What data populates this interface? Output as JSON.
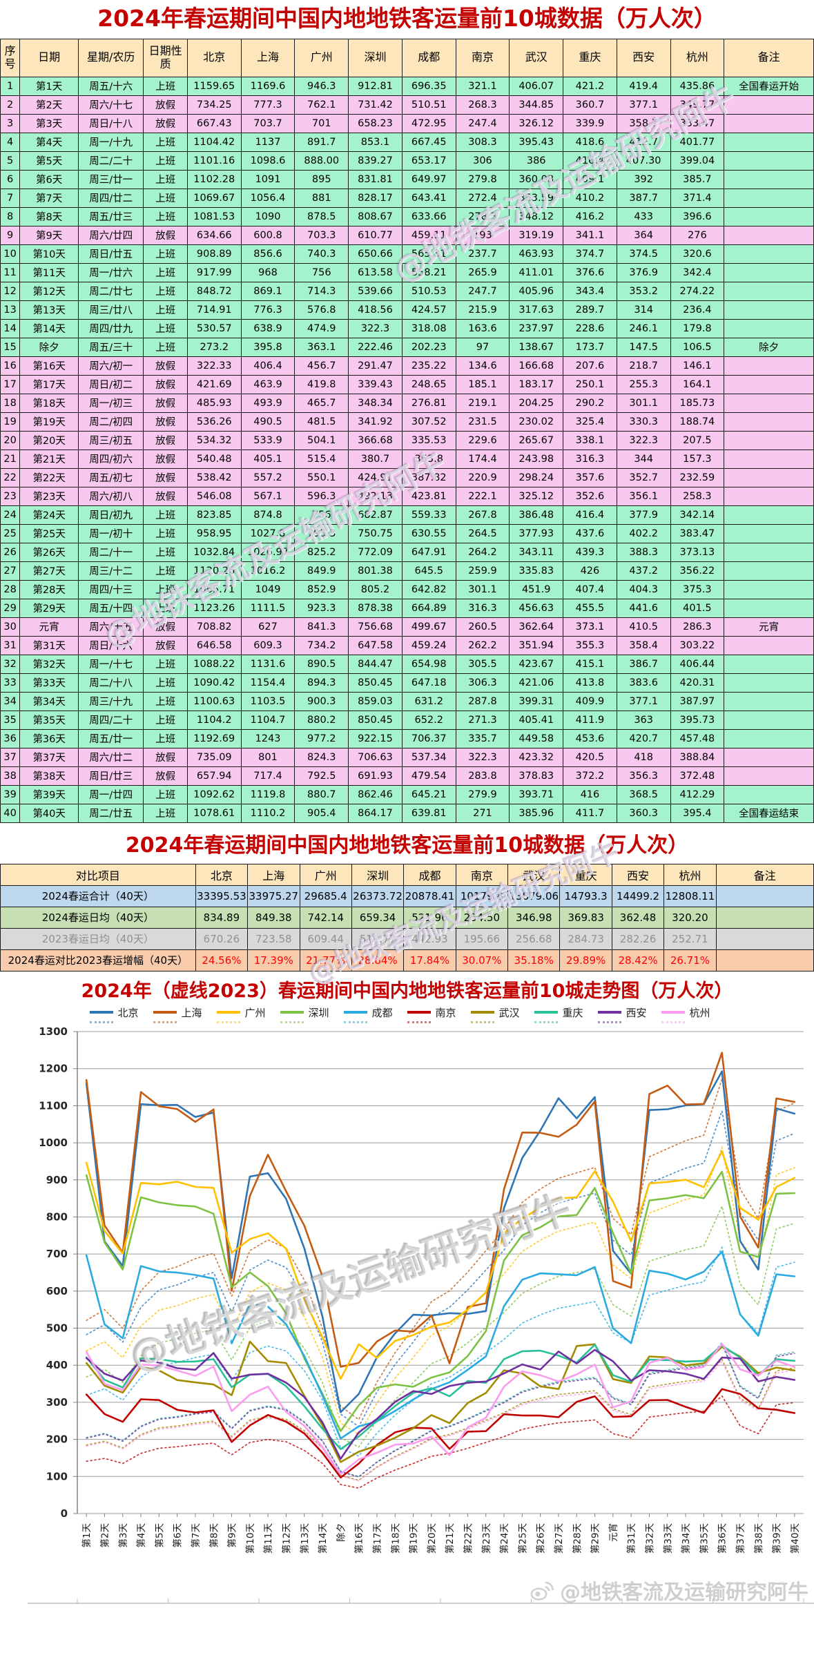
{
  "table1": {
    "title": "2024年春运期间中国内地地铁客运量前10城数据（万人次）",
    "headers": [
      "序号",
      "日期",
      "星期/农历",
      "日期性质",
      "北京",
      "上海",
      "广州",
      "深圳",
      "成都",
      "南京",
      "武汉",
      "重庆",
      "西安",
      "杭州",
      "备注"
    ],
    "rows": [
      [
        "1",
        "第1天",
        "周五/十六",
        "上班",
        "全国春运开始"
      ],
      [
        "2",
        "第2天",
        "周六/十七",
        "放假",
        ""
      ],
      [
        "3",
        "第3天",
        "周日/十八",
        "放假",
        ""
      ],
      [
        "4",
        "第4天",
        "周一/十九",
        "上班",
        ""
      ],
      [
        "5",
        "第5天",
        "周二/二十",
        "上班",
        ""
      ],
      [
        "6",
        "第6天",
        "周三/廿一",
        "上班",
        ""
      ],
      [
        "7",
        "第7天",
        "周四/廿二",
        "上班",
        ""
      ],
      [
        "8",
        "第8天",
        "周五/廿三",
        "上班",
        ""
      ],
      [
        "9",
        "第9天",
        "周六/廿四",
        "放假",
        ""
      ],
      [
        "10",
        "第10天",
        "周日/廿五",
        "上班",
        ""
      ],
      [
        "11",
        "第11天",
        "周一/廿六",
        "上班",
        ""
      ],
      [
        "12",
        "第12天",
        "周二/廿七",
        "上班",
        ""
      ],
      [
        "13",
        "第13天",
        "周三/廿八",
        "上班",
        ""
      ],
      [
        "14",
        "第14天",
        "周四/廿九",
        "上班",
        ""
      ],
      [
        "15",
        "除夕",
        "周五/三十",
        "上班",
        "除夕"
      ],
      [
        "16",
        "第16天",
        "周六/初一",
        "放假",
        ""
      ],
      [
        "17",
        "第17天",
        "周日/初二",
        "放假",
        ""
      ],
      [
        "18",
        "第18天",
        "周一/初三",
        "放假",
        ""
      ],
      [
        "19",
        "第19天",
        "周二/初四",
        "放假",
        ""
      ],
      [
        "20",
        "第20天",
        "周三/初五",
        "放假",
        ""
      ],
      [
        "21",
        "第21天",
        "周四/初六",
        "放假",
        ""
      ],
      [
        "22",
        "第22天",
        "周五/初七",
        "放假",
        ""
      ],
      [
        "23",
        "第23天",
        "周六/初八",
        "放假",
        ""
      ],
      [
        "24",
        "第24天",
        "周日/初九",
        "上班",
        ""
      ],
      [
        "25",
        "第25天",
        "周一/初十",
        "上班",
        ""
      ],
      [
        "26",
        "第26天",
        "周二/十一",
        "上班",
        ""
      ],
      [
        "27",
        "第27天",
        "周三/十二",
        "上班",
        ""
      ],
      [
        "28",
        "第28天",
        "周四/十三",
        "上班",
        ""
      ],
      [
        "29",
        "第29天",
        "周五/十四",
        "上班",
        ""
      ],
      [
        "30",
        "元宵",
        "周六/十五",
        "放假",
        "元宵"
      ],
      [
        "31",
        "第31天",
        "周日/十六",
        "放假",
        ""
      ],
      [
        "32",
        "第32天",
        "周一/十七",
        "上班",
        ""
      ],
      [
        "33",
        "第33天",
        "周二/十八",
        "上班",
        ""
      ],
      [
        "34",
        "第34天",
        "周三/十九",
        "上班",
        ""
      ],
      [
        "35",
        "第35天",
        "周四/二十",
        "上班",
        ""
      ],
      [
        "36",
        "第36天",
        "周五/廿一",
        "上班",
        ""
      ],
      [
        "37",
        "第37天",
        "周六/廿二",
        "放假",
        ""
      ],
      [
        "38",
        "第38天",
        "周日/廿三",
        "放假",
        ""
      ],
      [
        "39",
        "第39天",
        "周一/廿四",
        "上班",
        ""
      ],
      [
        "40",
        "第40天",
        "周二/廿五",
        "上班",
        "全国春运结束"
      ]
    ]
  },
  "table2": {
    "title": "2024年春运期间中国内地地铁客运量前10城数据（万人次）",
    "header_first": "对比项目",
    "header_last": "备注",
    "rows": [
      {
        "label": "2024春运合计（40天）",
        "style": "sum",
        "values": [
          33395.53,
          33975.27,
          29685.4,
          26373.72,
          20878.41,
          10179.8,
          13879.06,
          14793.3,
          14499.2,
          12808.11
        ]
      },
      {
        "label": "2024春运日均（40天）",
        "style": "avg24",
        "values": [
          834.89,
          849.38,
          742.14,
          659.34,
          521.96,
          "254.50",
          346.98,
          369.83,
          362.48,
          "320.20"
        ]
      },
      {
        "label": "2023春运日均（40天）",
        "style": "avg23",
        "values": [
          670.26,
          723.58,
          609.44,
          511.77,
          442.93,
          195.66,
          256.68,
          284.73,
          282.26,
          252.71
        ]
      },
      {
        "label": "2024春运对比2023春运增幅（40天）",
        "style": "growth",
        "values": [
          "24.56%",
          "17.39%",
          "21.77%",
          "28.84%",
          "17.84%",
          "30.07%",
          "35.18%",
          "29.89%",
          "28.42%",
          "26.71%"
        ]
      }
    ]
  },
  "chart_data": {
    "type": "line",
    "title": "2024年（虚线2023）春运期间中国内地地铁客运量前10城走势图（万人次）",
    "ylim": [
      0,
      1300
    ],
    "ytick_step": 100,
    "grid": true,
    "legend_position": "top",
    "x_labels_from": "table1 date column (第1天…除夕…元宵…第40天)",
    "series": [
      {
        "name": "北京",
        "color": "#2E75B6",
        "values": [
          1159.65,
          734.25,
          667.43,
          1104.42,
          1101.16,
          1102.28,
          1069.67,
          1081.53,
          634.66,
          908.89,
          917.99,
          848.72,
          714.91,
          530.57,
          273.2,
          322.33,
          421.69,
          485.93,
          536.26,
          534.32,
          540.48,
          538.42,
          546.08,
          823.85,
          958.95,
          1032.84,
          1120.26,
          1065.71,
          1123.26,
          708.82,
          646.58,
          1088.22,
          1090.42,
          1100.63,
          1104.2,
          1192.69,
          735.09,
          657.94,
          1092.62,
          1078.61
        ]
      },
      {
        "name": "上海",
        "color": "#C55A11",
        "values": [
          1169.6,
          777.3,
          703.7,
          1137,
          1098.6,
          1091,
          1056.4,
          1090,
          600.8,
          856.6,
          968,
          869.1,
          776.3,
          638.9,
          395.8,
          406.4,
          463.9,
          493.9,
          490.5,
          533.9,
          405.1,
          557.2,
          567.1,
          874.8,
          1027.8,
          1026.97,
          1016.2,
          1049,
          1111.5,
          627,
          609.3,
          1131.6,
          1154.4,
          1103.5,
          1104.7,
          1243,
          801,
          717.4,
          1119.8,
          1110.2
        ]
      },
      {
        "name": "广州",
        "color": "#FFC000",
        "values": [
          946.3,
          762.1,
          701,
          891.7,
          "888.00",
          895,
          881,
          878.5,
          703.3,
          740.3,
          756,
          714.3,
          576.8,
          474.9,
          363.1,
          456.7,
          419.8,
          465.7,
          481.5,
          504.1,
          515.4,
          550.1,
          596.3,
          756,
          795.3,
          825.2,
          849.9,
          852.9,
          923.3,
          841.3,
          734.2,
          890.5,
          894.3,
          900.3,
          880.2,
          977.2,
          824.3,
          792.5,
          880.7,
          905.4
        ]
      },
      {
        "name": "深圳",
        "color": "#7DC243",
        "values": [
          912.81,
          731.42,
          658.23,
          853.1,
          839.27,
          831.81,
          828.17,
          808.67,
          610.77,
          650.66,
          613.58,
          539.66,
          418.56,
          322.3,
          222.46,
          291.47,
          339.43,
          348.34,
          341.92,
          366.68,
          380.7,
          424.91,
          492.13,
          682.87,
          750.75,
          772.09,
          801.38,
          805.2,
          878.38,
          756.68,
          647.58,
          844.47,
          850.45,
          859.03,
          850.45,
          922.15,
          706.63,
          691.93,
          862.46,
          864.17
        ]
      },
      {
        "name": "成都",
        "color": "#29ABE2",
        "values": [
          696.35,
          510.51,
          472.95,
          667.45,
          653.17,
          649.97,
          643.41,
          633.66,
          459.11,
          565.31,
          558.21,
          510.53,
          424.57,
          318.08,
          202.23,
          235.22,
          248.65,
          276.81,
          307.52,
          335.53,
          353.8,
          387.82,
          423.81,
          559.33,
          630.55,
          647.91,
          645.5,
          642.82,
          664.89,
          499.67,
          459.24,
          654.98,
          647.18,
          631.2,
          652.2,
          706.37,
          537.34,
          479.54,
          645.21,
          639.81
        ]
      },
      {
        "name": "南京",
        "color": "#C00000",
        "values": [
          321.1,
          268.3,
          247.4,
          308.3,
          306,
          279.8,
          272.4,
          278.3,
          193,
          237.7,
          265.9,
          247.7,
          215.9,
          163.6,
          97,
          134.6,
          185.1,
          219.1,
          231.5,
          229.6,
          174.4,
          220.9,
          222.1,
          267.8,
          264.5,
          264.2,
          259.9,
          301.1,
          316.3,
          260.5,
          262.2,
          305.5,
          306.3,
          287.8,
          271.3,
          335.7,
          322.3,
          283.8,
          279.9,
          271
        ]
      },
      {
        "name": "武汉",
        "color": "#A38B00",
        "values": [
          406.07,
          344.85,
          326.12,
          395.43,
          386,
          360.08,
          353.59,
          348.12,
          319.19,
          463.93,
          411.01,
          405.96,
          317.63,
          237.97,
          138.67,
          166.68,
          183.17,
          204.25,
          230.02,
          265.67,
          243.98,
          298.24,
          325.12,
          386.48,
          377.93,
          343.11,
          335.83,
          451.9,
          456.63,
          362.64,
          351.94,
          423.67,
          421.06,
          399.31,
          405.41,
          449.58,
          423.32,
          378.83,
          393.71,
          385.96
        ]
      },
      {
        "name": "重庆",
        "color": "#29C098",
        "values": [
          421.2,
          360.7,
          339.9,
          418.6,
          416.4,
          409.1,
          410.2,
          416.2,
          341.1,
          374.7,
          376.6,
          343.4,
          289.7,
          228.6,
          173.7,
          207.6,
          250.1,
          290.2,
          325.4,
          338.1,
          316.3,
          357.6,
          352.6,
          416.4,
          437.6,
          439.3,
          426,
          407.4,
          455.5,
          373.1,
          355.3,
          415.1,
          413.8,
          409.9,
          411.9,
          453.6,
          420.5,
          372.2,
          416,
          411.7
        ]
      },
      {
        "name": "西安",
        "color": "#7030A0",
        "values": [
          419.4,
          377.1,
          358.7,
          412.7,
          "407.30",
          392,
          387.7,
          433,
          364,
          374.5,
          376.9,
          353.2,
          314,
          246.1,
          147.5,
          218.7,
          255.3,
          301.1,
          330.3,
          322.3,
          344,
          352.7,
          356.1,
          377.9,
          402.2,
          388.3,
          437.2,
          404.3,
          441.6,
          410.5,
          358.4,
          386.7,
          383.6,
          377.1,
          363,
          420.7,
          418,
          356.3,
          368.5,
          360.3
        ]
      },
      {
        "name": "杭州",
        "color": "#FC9BEF",
        "values": [
          435.86,
          349.77,
          333.47,
          401.77,
          399.04,
          385.7,
          371.4,
          396.6,
          276,
          320.6,
          342.4,
          274.22,
          236.4,
          179.8,
          106.5,
          146.1,
          164.1,
          185.73,
          188.74,
          207.5,
          157.3,
          232.59,
          258.3,
          342.14,
          383.47,
          373.13,
          356.22,
          375.3,
          401.5,
          286.3,
          303.22,
          406.44,
          420.31,
          387.97,
          395.73,
          457.48,
          388.84,
          372.48,
          412.29,
          395.4
        ]
      }
    ],
    "dashed_2023": {
      "note": "dotted lines = 2023 values, estimated from chart as city 2023 daily average (table2 row 3) times common shape curve",
      "shape": [
        0.72,
        0.76,
        0.69,
        0.83,
        0.9,
        0.92,
        0.95,
        0.97,
        0.81,
        0.98,
        1.02,
        0.99,
        0.87,
        0.69,
        0.4,
        0.35,
        0.49,
        0.6,
        0.69,
        0.79,
        0.83,
        0.9,
        0.98,
        1.06,
        1.16,
        1.21,
        1.25,
        1.27,
        1.29,
        1.1,
        1.04,
        1.33,
        1.36,
        1.39,
        1.41,
        1.62,
        1.21,
        1.1,
        1.5,
        1.53
      ]
    }
  },
  "watermark": {
    "text": "@地铁客流及运输研究阿牛"
  }
}
